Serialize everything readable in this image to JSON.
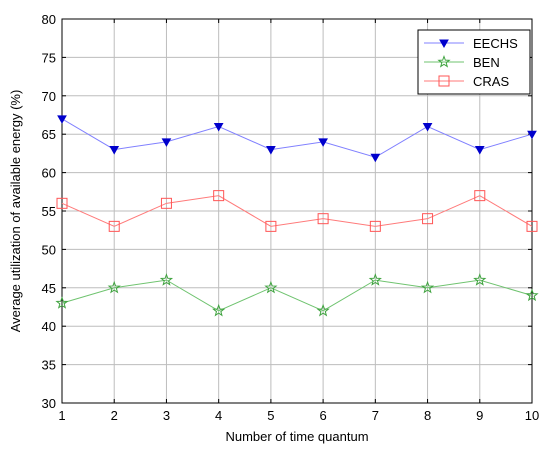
{
  "chart_data": {
    "type": "line",
    "title": "",
    "xlabel": "Number of time quantum",
    "ylabel": "Average utilization of available energy (%)",
    "x": [
      1,
      2,
      3,
      4,
      5,
      6,
      7,
      8,
      9,
      10
    ],
    "xlim": [
      1,
      10
    ],
    "ylim": [
      30,
      80
    ],
    "x_ticks": [
      "1",
      "2",
      "3",
      "4",
      "5",
      "6",
      "7",
      "8",
      "9",
      "10"
    ],
    "y_ticks": [
      "30",
      "35",
      "40",
      "45",
      "50",
      "55",
      "60",
      "65",
      "70",
      "75",
      "80"
    ],
    "grid": true,
    "legend_position": "top-right",
    "series": [
      {
        "name": "EECHS",
        "values": [
          67,
          63,
          64,
          66,
          63,
          64,
          62,
          66,
          63,
          65
        ],
        "color": "#8080ff",
        "marker": "arrow-down-fill",
        "marker_color": "#0000cc"
      },
      {
        "name": "BEN",
        "values": [
          43,
          45,
          46,
          42,
          45,
          42,
          46,
          45,
          46,
          44
        ],
        "color": "#6fc36f",
        "marker": "star",
        "marker_color": "#3fa33f"
      },
      {
        "name": "CRAS",
        "values": [
          56,
          53,
          56,
          57,
          53,
          54,
          53,
          54,
          57,
          53
        ],
        "color": "#ff7a7a",
        "marker": "square",
        "marker_color": "#ff5555"
      }
    ]
  }
}
